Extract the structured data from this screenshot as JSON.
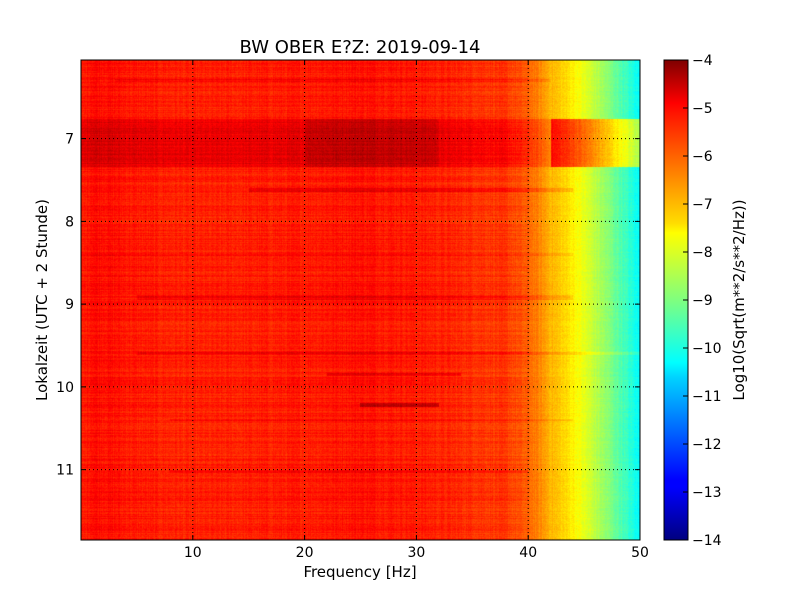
{
  "chart_data": {
    "type": "heatmap",
    "title": "BW OBER E?Z: 2019-09-14",
    "xlabel": "Frequency [Hz]",
    "ylabel": "Lokalzeit (UTC + 2 Stunde)",
    "xlim": [
      0,
      50
    ],
    "ylim": [
      6.05,
      11.85
    ],
    "y_inverted": true,
    "x_ticks": [
      10,
      20,
      30,
      40,
      50
    ],
    "y_ticks": [
      7,
      8,
      9,
      10,
      11
    ],
    "x_tick_labels": [
      "10",
      "20",
      "30",
      "40",
      "50"
    ],
    "y_tick_labels": [
      "7",
      "8",
      "9",
      "10",
      "11"
    ],
    "grid": true,
    "colormap": "jet",
    "colorbar": {
      "label": "Log10(Sqrt(m**2/s**2/Hz))",
      "range": [
        -14,
        -4
      ],
      "ticks": [
        -4,
        -5,
        -6,
        -7,
        -8,
        -9,
        -10,
        -11,
        -12,
        -13,
        -14
      ],
      "tick_labels": [
        "−4",
        "−5",
        "−6",
        "−7",
        "−8",
        "−9",
        "−10",
        "−11",
        "−12",
        "−13",
        "−14"
      ]
    },
    "spectrum_profile": {
      "frequency_hz": [
        0,
        1,
        5,
        10,
        20,
        25,
        30,
        38,
        40,
        42,
        44,
        46,
        48,
        50
      ],
      "level": [
        -5.6,
        -5.3,
        -5.5,
        -5.6,
        -5.5,
        -5.4,
        -5.5,
        -5.8,
        -6.2,
        -7.0,
        -7.6,
        -8.4,
        -9.3,
        -10.3
      ]
    },
    "events": [
      {
        "time": 7.05,
        "width": 0.58,
        "f_from": 0,
        "f_to": 50,
        "delta": 0.5
      },
      {
        "time": 6.3,
        "width": 0.04,
        "f_from": 3,
        "f_to": 42,
        "delta": 0.3
      },
      {
        "time": 7.62,
        "width": 0.05,
        "f_from": 15,
        "f_to": 44,
        "delta": 0.4
      },
      {
        "time": 8.4,
        "width": 0.04,
        "f_from": 0,
        "f_to": 44,
        "delta": 0.3
      },
      {
        "time": 8.92,
        "width": 0.05,
        "f_from": 5,
        "f_to": 44,
        "delta": 0.35
      },
      {
        "time": 9.6,
        "width": 0.04,
        "f_from": 5,
        "f_to": 50,
        "delta": 0.35
      },
      {
        "time": 9.85,
        "width": 0.04,
        "f_from": 22,
        "f_to": 34,
        "delta": 0.5
      },
      {
        "time": 10.22,
        "width": 0.04,
        "f_from": 25,
        "f_to": 32,
        "delta": 0.8
      },
      {
        "time": 10.4,
        "width": 0.03,
        "f_from": 8,
        "f_to": 44,
        "delta": 0.3
      },
      {
        "time": 11.02,
        "width": 0.04,
        "f_from": 8,
        "f_to": 40,
        "delta": 0.3
      }
    ]
  }
}
